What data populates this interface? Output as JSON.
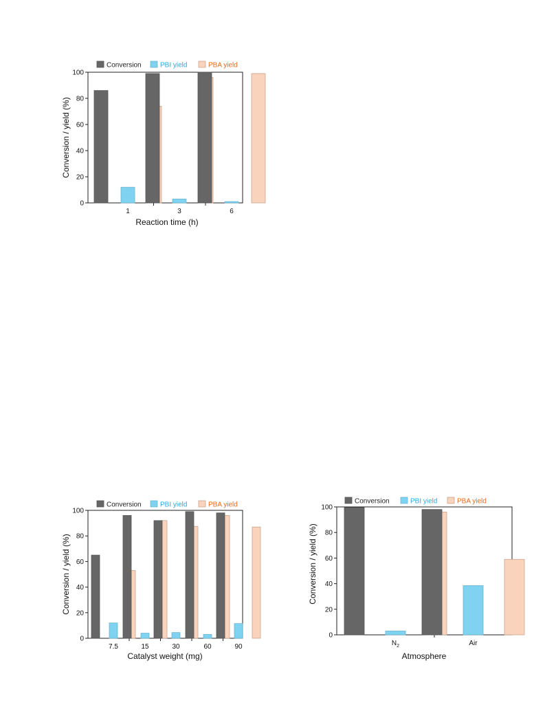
{
  "colors": {
    "conversion": "#666666",
    "pbi": "#7fd3f0",
    "pba": "#fad3bc",
    "conversion_text": "#222222",
    "pbi_text": "#29a9e1",
    "pba_text": "#e86a1c"
  },
  "chart_data": [
    {
      "type": "bar",
      "title": "",
      "xlabel": "Reaction time (h)",
      "ylabel": "Conversion / yield (%)",
      "ylim": [
        0,
        100
      ],
      "yticks": [
        "0",
        "20",
        "40",
        "60",
        "80",
        "100"
      ],
      "categories": [
        "1",
        "3",
        "6"
      ],
      "legend": [
        "Conversion",
        "PBI yield",
        "PBA yield"
      ],
      "legend_position": "top",
      "series": [
        {
          "name": "Conversion",
          "values": [
            86,
            99,
            100
          ]
        },
        {
          "name": "PBI yield",
          "values": [
            12,
            3,
            1
          ]
        },
        {
          "name": "PBA yield",
          "values": [
            74,
            96,
            99
          ]
        }
      ]
    },
    {
      "type": "bar",
      "title": "",
      "xlabel": "Catalyst weight (mg)",
      "ylabel": "Conversion / yield (%)",
      "ylim": [
        0,
        100
      ],
      "yticks": [
        "0",
        "20",
        "40",
        "60",
        "80",
        "100"
      ],
      "categories": [
        "7.5",
        "15",
        "30",
        "60",
        "90"
      ],
      "legend": [
        "Conversion",
        "PBI yield",
        "PBA yield"
      ],
      "legend_position": "top",
      "series": [
        {
          "name": "Conversion",
          "values": [
            65,
            96,
            92,
            99,
            98
          ]
        },
        {
          "name": "PBI yield",
          "values": [
            12,
            4,
            4.5,
            3,
            11.5
          ]
        },
        {
          "name": "PBA yield",
          "values": [
            53,
            92,
            87.5,
            96,
            87
          ]
        }
      ]
    },
    {
      "type": "bar",
      "title": "",
      "xlabel": "Atmosphere",
      "ylabel": "Conversion / yield (%)",
      "ylim": [
        0,
        100
      ],
      "yticks": [
        "0",
        "20",
        "40",
        "60",
        "80",
        "100"
      ],
      "categories": [
        "N2",
        "Air"
      ],
      "legend": [
        "Conversion",
        "PBI yield",
        "PBA yield"
      ],
      "legend_position": "top",
      "series": [
        {
          "name": "Conversion",
          "values": [
            99.5,
            98
          ]
        },
        {
          "name": "PBI yield",
          "values": [
            3,
            38.5
          ]
        },
        {
          "name": "PBA yield",
          "values": [
            96,
            59
          ]
        }
      ]
    }
  ]
}
